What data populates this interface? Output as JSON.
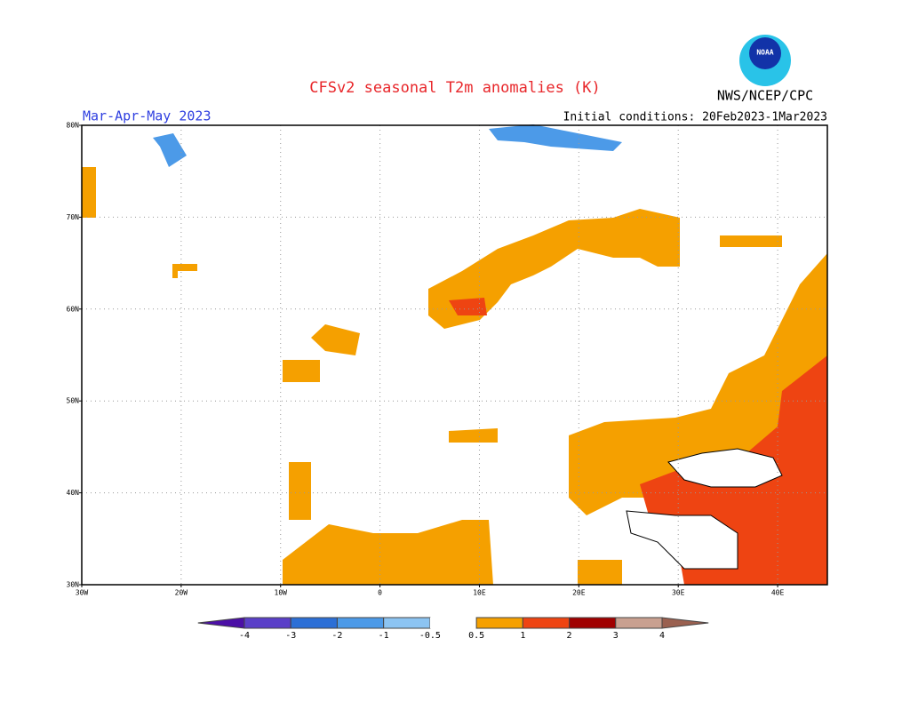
{
  "title": "CFSv2 seasonal T2m anomalies (K)",
  "logo_text": "NOAA",
  "agency": "NWS/NCEP/CPC",
  "season": "Mar-Apr-May 2023",
  "initial_conditions": "Initial conditions: 20Feb2023-1Mar2023",
  "map": {
    "lonlim": [
      -30,
      45
    ],
    "latlim": [
      30,
      80
    ],
    "lat_ticks": [
      {
        "value": 30,
        "label": "30N"
      },
      {
        "value": 40,
        "label": "40N"
      },
      {
        "value": 50,
        "label": "50N"
      },
      {
        "value": 60,
        "label": "60N"
      },
      {
        "value": 70,
        "label": "70N"
      },
      {
        "value": 80,
        "label": "80N"
      }
    ],
    "lon_ticks": [
      {
        "value": -30,
        "label": "30W"
      },
      {
        "value": -20,
        "label": "20W"
      },
      {
        "value": -10,
        "label": "10W"
      },
      {
        "value": 0,
        "label": "0"
      },
      {
        "value": 10,
        "label": "10E"
      },
      {
        "value": 20,
        "label": "20E"
      },
      {
        "value": 30,
        "label": "30E"
      },
      {
        "value": 40,
        "label": "40E"
      }
    ],
    "grid": true
  },
  "colorbar": {
    "levels": [
      -4,
      -3,
      -2,
      -1,
      -0.5,
      0.5,
      1,
      2,
      3,
      4
    ],
    "colors": [
      "#4b0fa6",
      "#5a3fc8",
      "#2c6fd6",
      "#4c9ae8",
      "#8cc4f2",
      "#ffffff",
      "#f5a000",
      "#ee4412",
      "#a00000",
      "#c9a090",
      "#9a6050"
    ]
  }
}
